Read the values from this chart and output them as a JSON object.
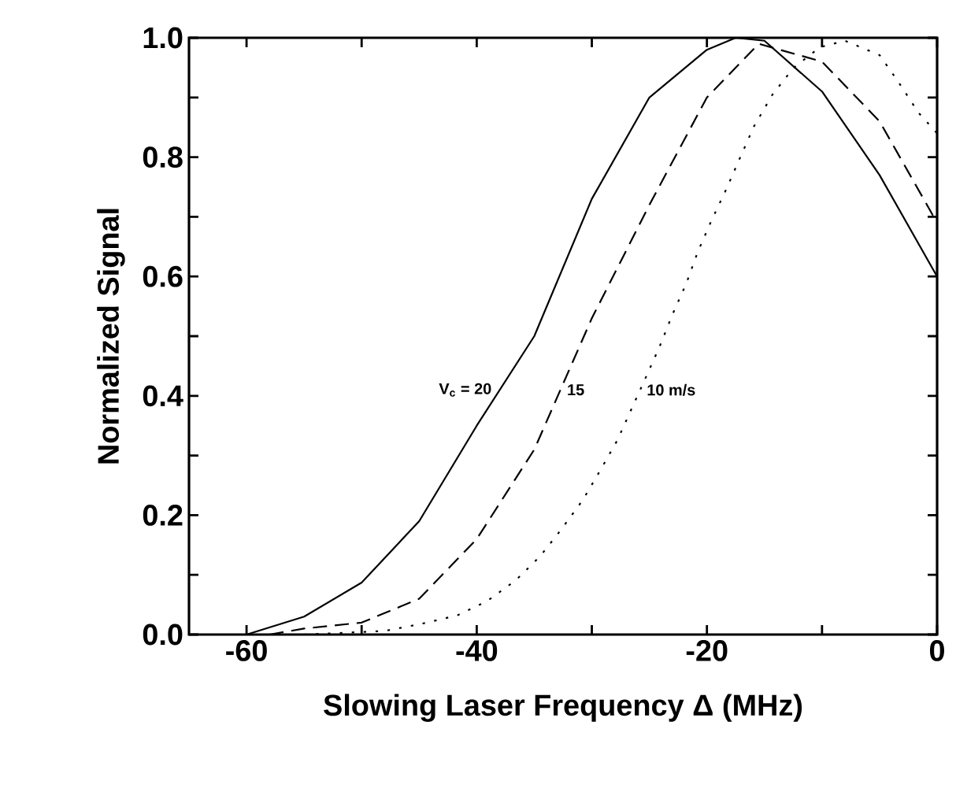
{
  "chart_data": {
    "type": "line",
    "xlabel": "Slowing Laser Frequency Δ (MHz)",
    "ylabel": "Normalized Signal",
    "xlim": [
      -65,
      0
    ],
    "ylim": [
      0,
      1
    ],
    "xticks": [
      -60,
      {
        "value": -50,
        "label": null
      },
      -40,
      {
        "value": -30,
        "label": null
      },
      -20,
      {
        "value": -10,
        "label": null
      },
      0
    ],
    "yticks": [
      {
        "value": 0,
        "label": "0.0"
      },
      {
        "value": 0.1,
        "label": null
      },
      {
        "value": 0.2,
        "label": "0.2"
      },
      {
        "value": 0.3,
        "label": null
      },
      {
        "value": 0.4,
        "label": "0.4"
      },
      {
        "value": 0.5,
        "label": null
      },
      {
        "value": 0.6,
        "label": "0.6"
      },
      {
        "value": 0.7,
        "label": null
      },
      {
        "value": 0.8,
        "label": "0.8"
      },
      {
        "value": 0.9,
        "label": null
      },
      {
        "value": 1.0,
        "label": "1.0"
      }
    ],
    "grid": false,
    "marker": "none",
    "series": [
      {
        "color": "#000000",
        "line_style": "solid",
        "x": [
          -60,
          -55,
          -50,
          -45,
          -40,
          -35,
          -30,
          -25,
          -20,
          -17.5,
          -15,
          -10,
          -5,
          0
        ],
        "values": [
          0,
          0.03,
          0.087,
          0.19,
          0.35,
          0.5,
          0.73,
          0.9,
          0.98,
          1.0,
          0.995,
          0.91,
          0.77,
          0.6
        ]
      },
      {
        "color": "#000000",
        "line_style": "dashed",
        "x": [
          -58,
          -55,
          -50,
          -45,
          -40,
          -35,
          -30,
          -25,
          -20,
          -15.5,
          -10,
          -5,
          0
        ],
        "values": [
          0,
          0.01,
          0.02,
          0.06,
          0.16,
          0.31,
          0.53,
          0.72,
          0.9,
          0.99,
          0.96,
          0.86,
          0.69
        ]
      },
      {
        "color": "#000000",
        "line_style": "dotted",
        "x": [
          -55,
          -48,
          -44.8,
          -41.7,
          -39.1,
          -36.6,
          -34.5,
          -32.7,
          -30.8,
          -29.3,
          -27.8,
          -25.4,
          -24.1,
          -23,
          -21.8,
          -20.8,
          -19.6,
          -18.3,
          -17.1,
          -15.9,
          -14.3,
          -12.5,
          -10.2,
          -8,
          -5,
          -3.4,
          -1.6,
          0
        ],
        "values": [
          0,
          0.006,
          0.018,
          0.032,
          0.056,
          0.091,
          0.131,
          0.175,
          0.225,
          0.274,
          0.325,
          0.427,
          0.483,
          0.536,
          0.588,
          0.641,
          0.694,
          0.747,
          0.8,
          0.852,
          0.905,
          0.949,
          0.984,
          0.995,
          0.971,
          0.927,
          0.874,
          0.84
        ]
      }
    ],
    "annotations": [
      "V$_{c}$ = 20",
      "15",
      "10 m/s"
    ]
  }
}
